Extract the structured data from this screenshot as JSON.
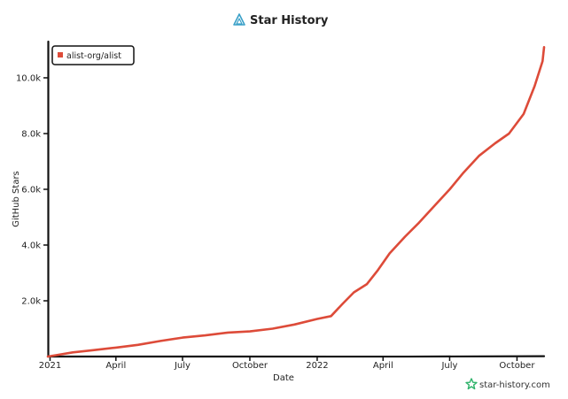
{
  "title": "Star History",
  "watermark": "star-history.com",
  "colors": {
    "series": "#dd4b39",
    "axis": "#111111",
    "logo": "#3aa0c8",
    "watermark_icon": "#2fb36b"
  },
  "chart_data": {
    "type": "line",
    "title": "Star History",
    "xlabel": "Date",
    "ylabel": "GitHub Stars",
    "xlim": [
      "2020-12-29",
      "2022-11-07"
    ],
    "ylim": [
      0,
      11300
    ],
    "x_ticks": [
      {
        "date": "2021-01-01",
        "label": "2021"
      },
      {
        "date": "2021-04-01",
        "label": "April"
      },
      {
        "date": "2021-07-01",
        "label": "July"
      },
      {
        "date": "2021-10-01",
        "label": "October"
      },
      {
        "date": "2022-01-01",
        "label": "2022"
      },
      {
        "date": "2022-04-01",
        "label": "April"
      },
      {
        "date": "2022-07-01",
        "label": "July"
      },
      {
        "date": "2022-10-01",
        "label": "October"
      }
    ],
    "y_ticks": [
      {
        "value": 2000,
        "label": "2.0k"
      },
      {
        "value": 4000,
        "label": "4.0k"
      },
      {
        "value": 6000,
        "label": "6.0k"
      },
      {
        "value": 8000,
        "label": "8.0k"
      },
      {
        "value": 10000,
        "label": "10.0k"
      }
    ],
    "grid": false,
    "legend_position": "top-left",
    "series": [
      {
        "name": "alist-org/alist",
        "points": [
          {
            "x": "2020-12-29",
            "y": 0
          },
          {
            "x": "2021-01-10",
            "y": 50
          },
          {
            "x": "2021-02-01",
            "y": 150
          },
          {
            "x": "2021-03-01",
            "y": 230
          },
          {
            "x": "2021-04-01",
            "y": 320
          },
          {
            "x": "2021-05-01",
            "y": 420
          },
          {
            "x": "2021-06-01",
            "y": 560
          },
          {
            "x": "2021-07-01",
            "y": 680
          },
          {
            "x": "2021-08-01",
            "y": 760
          },
          {
            "x": "2021-09-01",
            "y": 860
          },
          {
            "x": "2021-10-01",
            "y": 900
          },
          {
            "x": "2021-11-01",
            "y": 1000
          },
          {
            "x": "2021-12-01",
            "y": 1150
          },
          {
            "x": "2022-01-01",
            "y": 1350
          },
          {
            "x": "2022-01-20",
            "y": 1450
          },
          {
            "x": "2022-02-05",
            "y": 1900
          },
          {
            "x": "2022-02-20",
            "y": 2300
          },
          {
            "x": "2022-03-10",
            "y": 2600
          },
          {
            "x": "2022-03-25",
            "y": 3100
          },
          {
            "x": "2022-04-10",
            "y": 3700
          },
          {
            "x": "2022-05-01",
            "y": 4300
          },
          {
            "x": "2022-05-20",
            "y": 4800
          },
          {
            "x": "2022-06-10",
            "y": 5400
          },
          {
            "x": "2022-07-01",
            "y": 6000
          },
          {
            "x": "2022-07-20",
            "y": 6600
          },
          {
            "x": "2022-08-10",
            "y": 7200
          },
          {
            "x": "2022-09-01",
            "y": 7650
          },
          {
            "x": "2022-09-20",
            "y": 8000
          },
          {
            "x": "2022-10-10",
            "y": 8700
          },
          {
            "x": "2022-10-25",
            "y": 9700
          },
          {
            "x": "2022-11-05",
            "y": 10600
          },
          {
            "x": "2022-11-07",
            "y": 11100
          }
        ]
      }
    ]
  }
}
